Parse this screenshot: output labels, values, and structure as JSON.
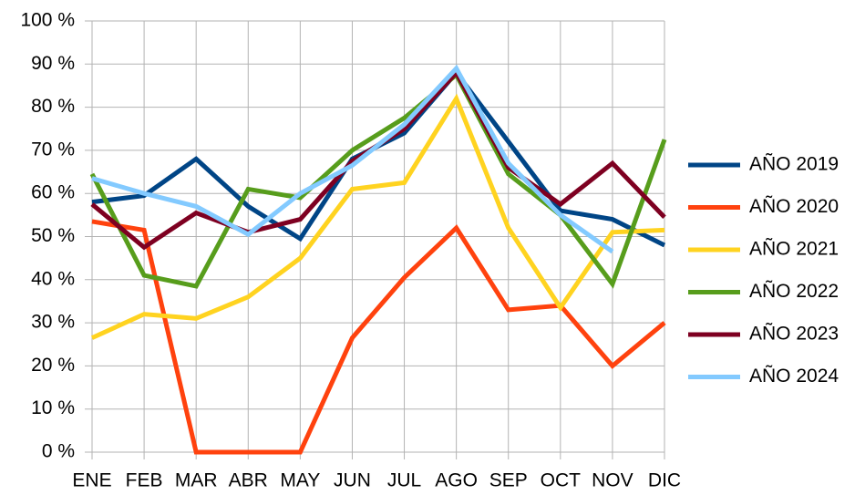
{
  "chart_data": {
    "type": "line",
    "categories": [
      "ENE",
      "FEB",
      "MAR",
      "ABR",
      "MAY",
      "JUN",
      "JUL",
      "AGO",
      "SEP",
      "OCT",
      "NOV",
      "DIC"
    ],
    "series": [
      {
        "name": "AÑO 2019",
        "color": "#004586",
        "values": [
          58,
          59.5,
          68,
          57,
          49.5,
          68,
          74,
          88,
          72,
          56,
          54,
          48
        ]
      },
      {
        "name": "AÑO 2020",
        "color": "#ff420e",
        "values": [
          53.5,
          51.5,
          0,
          0,
          0,
          26.5,
          40.5,
          52,
          33,
          34,
          20,
          30
        ]
      },
      {
        "name": "AÑO 2021",
        "color": "#ffd320",
        "values": [
          26.5,
          32,
          31,
          36,
          45,
          61,
          62.5,
          82,
          52,
          33.5,
          51,
          51.5
        ]
      },
      {
        "name": "AÑO 2022",
        "color": "#579d1c",
        "values": [
          64.5,
          41,
          38.5,
          61,
          59,
          70,
          77.5,
          87.5,
          64.5,
          55,
          39,
          72.5
        ]
      },
      {
        "name": "AÑO 2023",
        "color": "#7e0021",
        "values": [
          57.5,
          47.5,
          55.5,
          51,
          54,
          67.5,
          75,
          88,
          66,
          57.5,
          67,
          54.5
        ]
      },
      {
        "name": "AÑO 2024",
        "color": "#83caff",
        "values": [
          63.5,
          60,
          57,
          50.5,
          60,
          66.5,
          76,
          89,
          67,
          55,
          46.5,
          null
        ]
      }
    ],
    "ylim": [
      0,
      100
    ],
    "yticks": [
      {
        "value": 0,
        "label": "0 %"
      },
      {
        "value": 10,
        "label": "10 %"
      },
      {
        "value": 20,
        "label": "20 %"
      },
      {
        "value": 30,
        "label": "30 %"
      },
      {
        "value": 40,
        "label": "40 %"
      },
      {
        "value": 50,
        "label": "50 %"
      },
      {
        "value": 60,
        "label": "60 %"
      },
      {
        "value": 70,
        "label": "70 %"
      },
      {
        "value": 80,
        "label": "80 %"
      },
      {
        "value": 90,
        "label": "90 %"
      },
      {
        "value": 100,
        "label": "100 %"
      }
    ],
    "grid": true,
    "legend": "right"
  }
}
